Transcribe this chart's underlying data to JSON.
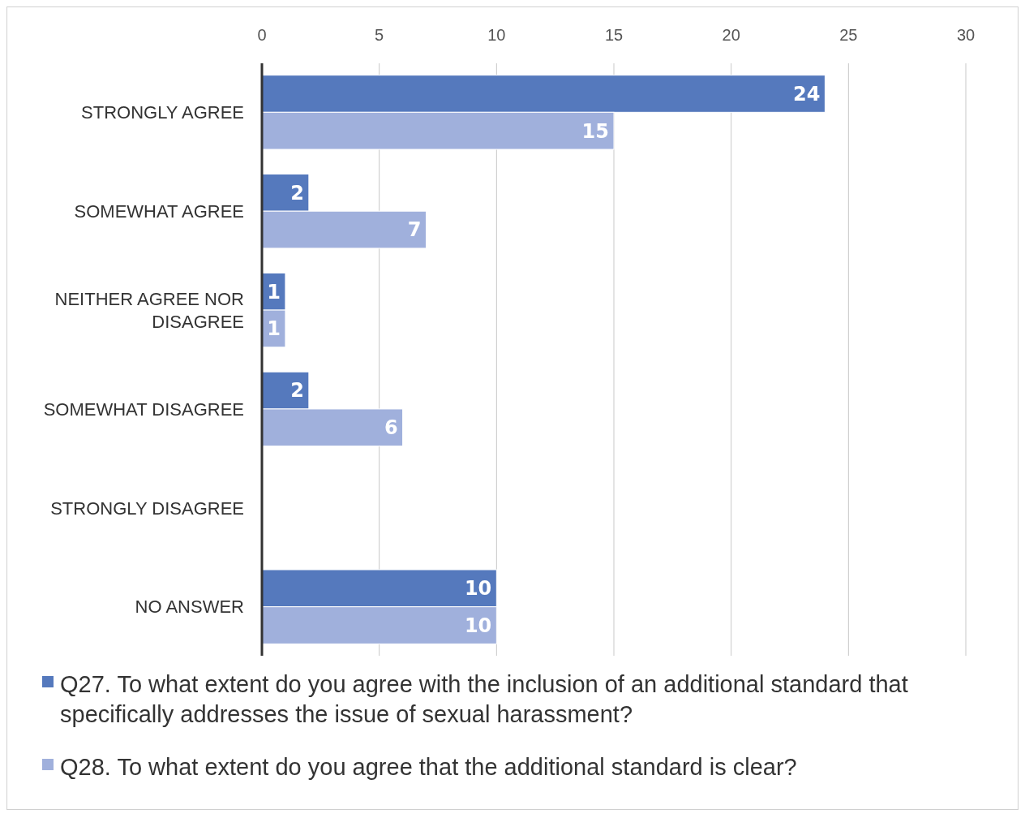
{
  "chart_data": {
    "type": "bar",
    "orientation": "horizontal",
    "categories": [
      "STRONGLY AGREE",
      "SOMEWHAT AGREE",
      "NEITHER AGREE NOR DISAGREE",
      "SOMEWHAT DISAGREE",
      "STRONGLY DISAGREE",
      "NO ANSWER"
    ],
    "series": [
      {
        "name": "Q27. To what extent do you agree with the inclusion of an additional standard that specifically addresses the issue of sexual harassment?",
        "color": "#5579bd",
        "values": [
          24,
          2,
          1,
          2,
          null,
          10
        ]
      },
      {
        "name": "Q28. To what extent do you agree that the additional standard is clear?",
        "color": "#a0b0dc",
        "values": [
          15,
          7,
          1,
          6,
          null,
          10
        ]
      }
    ],
    "xlim": [
      0,
      30
    ],
    "xticks": [
      0,
      5,
      10,
      15,
      20,
      25,
      30
    ],
    "grid": "x",
    "legend": "bottom",
    "data_labels": true
  }
}
